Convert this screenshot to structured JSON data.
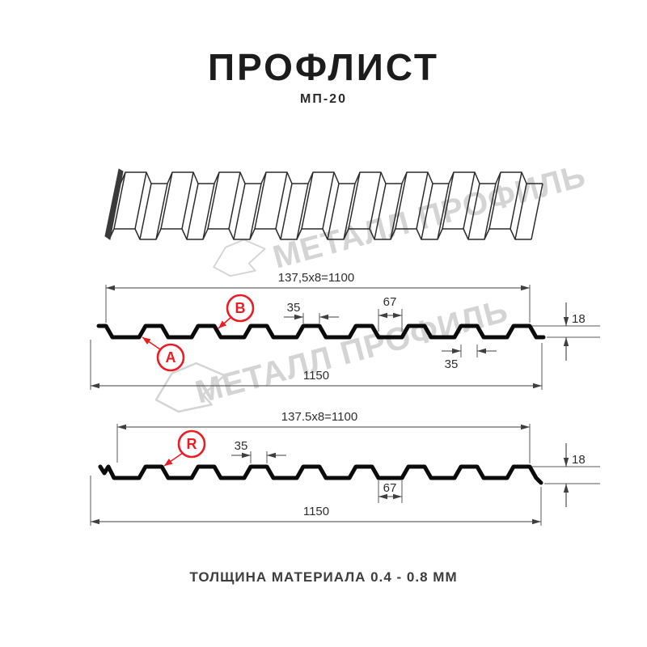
{
  "header": {
    "title": "ПРОФЛИСТ",
    "subtitle": "МП-20"
  },
  "watermark": {
    "text": "МЕТАЛЛ ПРОФИЛЬ",
    "color": "#d4d4d4"
  },
  "sections": {
    "top": {
      "dim_pitch_total": "137,5x8=1100",
      "dim_rib_top_width": "35",
      "dim_rib_base_width": "67",
      "dim_height": "18",
      "dim_rib_top_width_bottom": "35",
      "dim_overall_width": "1150",
      "callout_a": "A",
      "callout_b": "B"
    },
    "bottom": {
      "dim_pitch_total": "137.5x8=1100",
      "dim_rib_top_width": "35",
      "dim_height": "18",
      "dim_valley_width": "67",
      "dim_overall_width": "1150",
      "callout_r": "R"
    }
  },
  "footer": {
    "text": "ТОЛЩИНА МАТЕРИАЛА 0.4 - 0.8 ММ"
  },
  "colors": {
    "accent_red": "#ec1c24",
    "line": "#3f3f3f",
    "ink": "#0b0b0b",
    "watermark": "#d4d4d4"
  }
}
